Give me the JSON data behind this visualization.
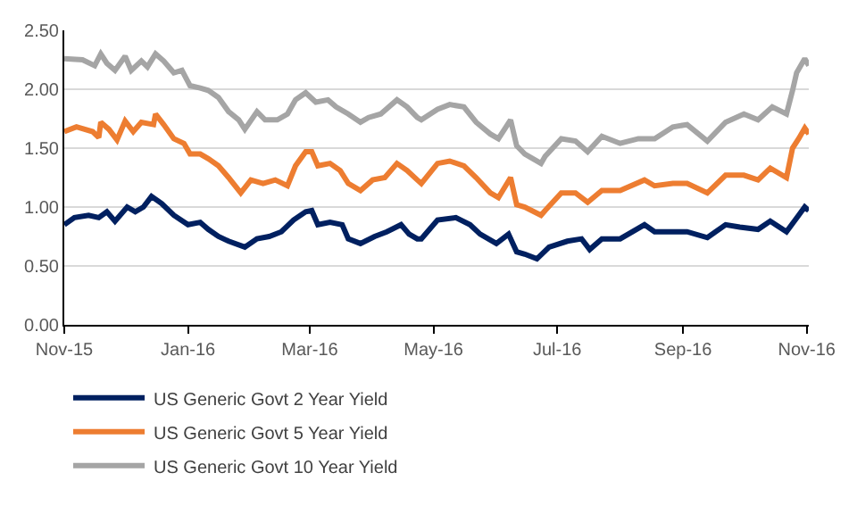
{
  "chart_data": {
    "type": "line",
    "xlim": [
      "2015-11-01",
      "2016-11-02"
    ],
    "xticks": [
      {
        "value": "2015-11-01",
        "label": "Nov-15"
      },
      {
        "value": "2016-01-01",
        "label": "Jan-16"
      },
      {
        "value": "2016-03-01",
        "label": "Mar-16"
      },
      {
        "value": "2016-05-01",
        "label": "May-16"
      },
      {
        "value": "2016-07-01",
        "label": "Jul-16"
      },
      {
        "value": "2016-09-01",
        "label": "Sep-16"
      },
      {
        "value": "2016-11-01",
        "label": "Nov-16"
      }
    ],
    "ylim": [
      0,
      2.5
    ],
    "yticks": [
      {
        "value": 0,
        "label": "0.00"
      },
      {
        "value": 0.5,
        "label": "0.50"
      },
      {
        "value": 1,
        "label": "1.00"
      },
      {
        "value": 1.5,
        "label": "1.50"
      },
      {
        "value": 2,
        "label": "2.00"
      },
      {
        "value": 2.5,
        "label": "2.50"
      }
    ],
    "grid": "y",
    "legend": "bottom",
    "marker": "none",
    "line_style": "solid",
    "series": [
      {
        "name": "US Generic Govt 2 Year Yield",
        "color": "#002060",
        "x": [
          "2015-11-01",
          "2015-11-06",
          "2015-11-13",
          "2015-11-18",
          "2015-11-22",
          "2015-11-26",
          "2015-12-02",
          "2015-12-06",
          "2015-12-10",
          "2015-12-14",
          "2015-12-19",
          "2015-12-25",
          "2016-01-01",
          "2016-01-07",
          "2016-01-11",
          "2016-01-16",
          "2016-01-21",
          "2016-01-29",
          "2016-02-04",
          "2016-02-10",
          "2016-02-16",
          "2016-02-22",
          "2016-02-28",
          "2016-03-02",
          "2016-03-05",
          "2016-03-11",
          "2016-03-17",
          "2016-03-20",
          "2016-03-26",
          "2016-04-02",
          "2016-04-08",
          "2016-04-15",
          "2016-04-19",
          "2016-04-23",
          "2016-04-25",
          "2016-05-03",
          "2016-05-12",
          "2016-05-19",
          "2016-05-24",
          "2016-06-01",
          "2016-06-07",
          "2016-06-11",
          "2016-06-15",
          "2016-06-21",
          "2016-06-27",
          "2016-07-06",
          "2016-07-13",
          "2016-07-17",
          "2016-07-23",
          "2016-08-01",
          "2016-08-13",
          "2016-08-18",
          "2016-08-27",
          "2016-09-03",
          "2016-09-13",
          "2016-09-22",
          "2016-09-29",
          "2016-10-08",
          "2016-10-14",
          "2016-10-22",
          "2016-10-28",
          "2016-10-31",
          "2016-11-02"
        ],
        "values": [
          0.85,
          0.91,
          0.93,
          0.91,
          0.96,
          0.88,
          1.0,
          0.96,
          1.0,
          1.09,
          1.03,
          0.93,
          0.85,
          0.87,
          0.81,
          0.75,
          0.71,
          0.66,
          0.73,
          0.75,
          0.79,
          0.89,
          0.96,
          0.97,
          0.85,
          0.87,
          0.85,
          0.73,
          0.69,
          0.75,
          0.79,
          0.85,
          0.77,
          0.73,
          0.73,
          0.89,
          0.91,
          0.85,
          0.77,
          0.69,
          0.77,
          0.62,
          0.6,
          0.56,
          0.66,
          0.71,
          0.73,
          0.64,
          0.73,
          0.73,
          0.85,
          0.79,
          0.79,
          0.79,
          0.74,
          0.85,
          0.83,
          0.81,
          0.88,
          0.79,
          0.93,
          1.0,
          0.97
        ]
      },
      {
        "name": "US Generic Govt 5 Year Yield",
        "color": "#ed7d31",
        "x": [
          "2015-11-01",
          "2015-11-07",
          "2015-11-15",
          "2015-11-18",
          "2015-11-19",
          "2015-11-23",
          "2015-11-27",
          "2015-12-01",
          "2015-12-05",
          "2015-12-09",
          "2015-12-15",
          "2015-12-16",
          "2015-12-20",
          "2015-12-25",
          "2015-12-30",
          "2016-01-02",
          "2016-01-07",
          "2016-01-11",
          "2016-01-16",
          "2016-01-21",
          "2016-01-27",
          "2016-02-01",
          "2016-02-07",
          "2016-02-13",
          "2016-02-19",
          "2016-02-23",
          "2016-02-28",
          "2016-03-02",
          "2016-03-05",
          "2016-03-11",
          "2016-03-16",
          "2016-03-20",
          "2016-03-26",
          "2016-04-01",
          "2016-04-07",
          "2016-04-13",
          "2016-04-18",
          "2016-04-23",
          "2016-04-25",
          "2016-05-03",
          "2016-05-09",
          "2016-05-16",
          "2016-05-22",
          "2016-05-29",
          "2016-06-02",
          "2016-06-08",
          "2016-06-11",
          "2016-06-15",
          "2016-06-23",
          "2016-06-25",
          "2016-07-03",
          "2016-07-10",
          "2016-07-16",
          "2016-07-23",
          "2016-08-01",
          "2016-08-13",
          "2016-08-18",
          "2016-08-27",
          "2016-09-03",
          "2016-09-13",
          "2016-09-22",
          "2016-10-01",
          "2016-10-08",
          "2016-10-14",
          "2016-10-22",
          "2016-10-25",
          "2016-10-28",
          "2016-10-31",
          "2016-11-02"
        ],
        "values": [
          1.64,
          1.68,
          1.64,
          1.59,
          1.72,
          1.66,
          1.57,
          1.73,
          1.64,
          1.72,
          1.7,
          1.79,
          1.7,
          1.58,
          1.54,
          1.45,
          1.45,
          1.41,
          1.35,
          1.25,
          1.12,
          1.23,
          1.2,
          1.23,
          1.18,
          1.35,
          1.47,
          1.47,
          1.35,
          1.37,
          1.31,
          1.2,
          1.14,
          1.23,
          1.25,
          1.37,
          1.31,
          1.23,
          1.2,
          1.37,
          1.39,
          1.35,
          1.25,
          1.12,
          1.08,
          1.25,
          1.02,
          1.0,
          0.93,
          0.97,
          1.12,
          1.12,
          1.04,
          1.14,
          1.14,
          1.23,
          1.18,
          1.2,
          1.2,
          1.12,
          1.27,
          1.27,
          1.23,
          1.33,
          1.25,
          1.5,
          1.58,
          1.67,
          1.62
        ]
      },
      {
        "name": "US Generic Govt 10 Year Yield",
        "color": "#a5a5a5",
        "x": [
          "2015-11-01",
          "2015-11-10",
          "2015-11-16",
          "2015-11-19",
          "2015-11-22",
          "2015-11-26",
          "2015-12-01",
          "2015-12-04",
          "2015-12-09",
          "2015-12-12",
          "2015-12-16",
          "2015-12-20",
          "2015-12-25",
          "2015-12-29",
          "2016-01-02",
          "2016-01-07",
          "2016-01-11",
          "2016-01-16",
          "2016-01-21",
          "2016-01-26",
          "2016-01-29",
          "2016-02-04",
          "2016-02-08",
          "2016-02-14",
          "2016-02-19",
          "2016-02-23",
          "2016-02-28",
          "2016-03-04",
          "2016-03-10",
          "2016-03-14",
          "2016-03-20",
          "2016-03-26",
          "2016-03-30",
          "2016-04-05",
          "2016-04-13",
          "2016-04-18",
          "2016-04-23",
          "2016-04-25",
          "2016-05-03",
          "2016-05-09",
          "2016-05-16",
          "2016-05-22",
          "2016-05-29",
          "2016-06-02",
          "2016-06-08",
          "2016-06-11",
          "2016-06-15",
          "2016-06-23",
          "2016-06-25",
          "2016-07-03",
          "2016-07-10",
          "2016-07-16",
          "2016-07-23",
          "2016-08-01",
          "2016-08-10",
          "2016-08-18",
          "2016-08-27",
          "2016-09-03",
          "2016-09-13",
          "2016-09-22",
          "2016-10-01",
          "2016-10-08",
          "2016-10-15",
          "2016-10-22",
          "2016-10-25",
          "2016-10-27",
          "2016-10-31",
          "2016-11-02"
        ],
        "values": [
          2.26,
          2.25,
          2.2,
          2.3,
          2.22,
          2.16,
          2.28,
          2.16,
          2.24,
          2.19,
          2.3,
          2.24,
          2.14,
          2.16,
          2.03,
          2.01,
          1.99,
          1.93,
          1.81,
          1.74,
          1.66,
          1.81,
          1.74,
          1.74,
          1.79,
          1.91,
          1.97,
          1.89,
          1.91,
          1.85,
          1.79,
          1.72,
          1.76,
          1.79,
          1.91,
          1.85,
          1.76,
          1.74,
          1.83,
          1.87,
          1.85,
          1.72,
          1.62,
          1.58,
          1.74,
          1.52,
          1.45,
          1.37,
          1.43,
          1.58,
          1.56,
          1.47,
          1.6,
          1.54,
          1.58,
          1.58,
          1.68,
          1.7,
          1.56,
          1.72,
          1.79,
          1.74,
          1.85,
          1.79,
          1.99,
          2.14,
          2.26,
          2.2
        ]
      }
    ]
  }
}
